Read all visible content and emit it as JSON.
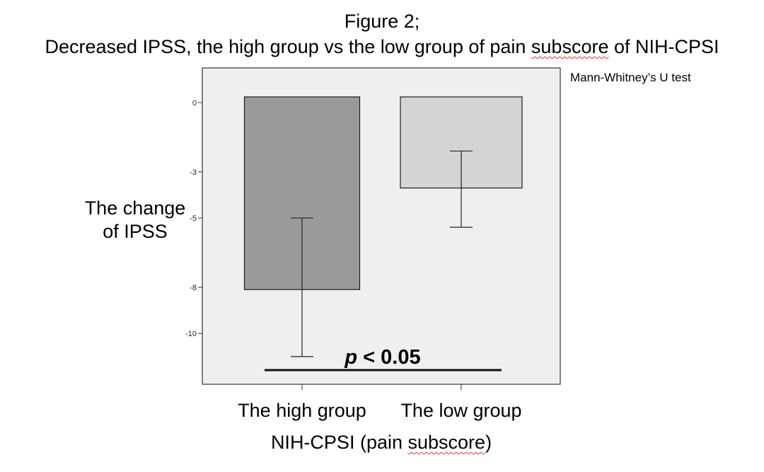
{
  "figure": {
    "title": "Figure 2;",
    "subtitle_parts": [
      "Decreased IPSS, the high group vs the low group of pain ",
      "subscore",
      " of NIH-CPSI"
    ],
    "test_note": "Mann-Whitney’s U test",
    "significance": {
      "p_label": "p",
      "rest": "< 0.05"
    }
  },
  "chart_data": {
    "type": "bar",
    "categories": [
      "The high group",
      "The low group"
    ],
    "values": [
      -8.1,
      -3.7
    ],
    "error_bars": [
      {
        "low": -11.0,
        "high": -5.0
      },
      {
        "low": -5.4,
        "high": -2.1
      }
    ],
    "ylabel_lines": [
      "The change",
      "of IPSS"
    ],
    "xlabel_parts": [
      "NIH-CPSI (pain ",
      "subscore",
      ")"
    ],
    "yticks": [
      0,
      -3,
      -5,
      -8,
      -10
    ],
    "ylim": [
      -12.2,
      1.5
    ],
    "grid": false,
    "colors": {
      "plot_background": "#efefef",
      "bars": [
        "#9a9a9a",
        "#d4d4d4"
      ],
      "outline": "#1e1e1e",
      "spellcheck_underline": "#d23b3b"
    }
  }
}
